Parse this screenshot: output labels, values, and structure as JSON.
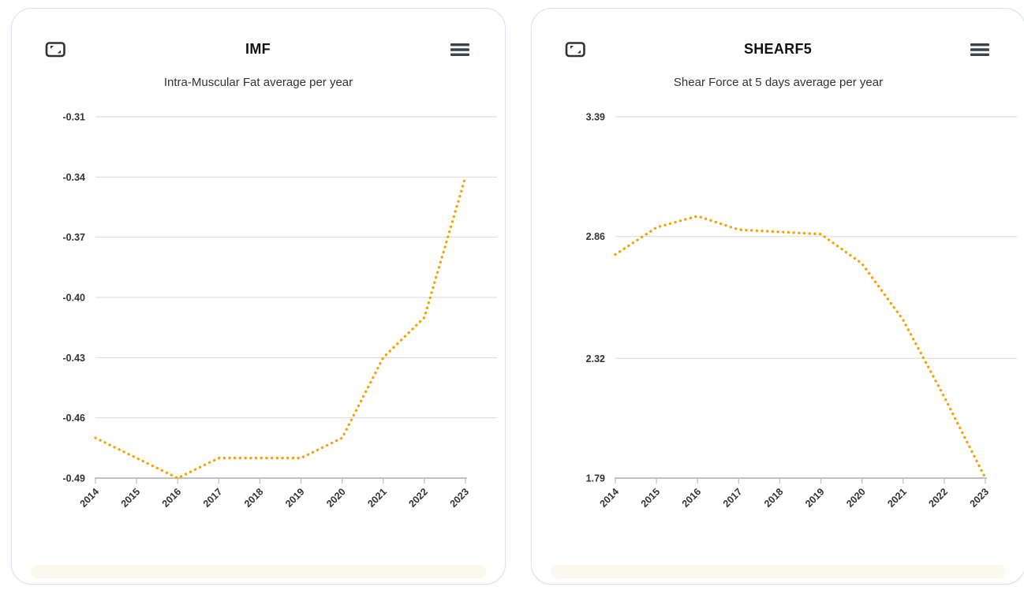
{
  "colors": {
    "accent": "#F0A30A",
    "grid": "#D9D9D9",
    "axis": "#BCC2C7",
    "label": "#333333",
    "title": "#111111",
    "card_border": "#DCE3EC"
  },
  "cards": [
    {
      "title": "IMF",
      "subtitle": "Intra-Muscular Fat average per year",
      "fullscreen_icon": "fullscreen-icon",
      "menu_icon": "hamburger-menu-icon"
    },
    {
      "title": "SHEARF5",
      "subtitle": "Shear Force at 5 days average per year",
      "fullscreen_icon": "fullscreen-icon",
      "menu_icon": "hamburger-menu-icon"
    }
  ],
  "chart_data": [
    {
      "type": "line",
      "title": "IMF",
      "subtitle": "Intra-Muscular Fat average per year",
      "line_style": "dotted",
      "line_color": "#F0A30A",
      "grid": true,
      "legend": false,
      "categories": [
        "2014",
        "2015",
        "2016",
        "2017",
        "2018",
        "2019",
        "2020",
        "2021",
        "2022",
        "2023"
      ],
      "series": [
        {
          "name": "IMF",
          "values": [
            -0.47,
            -0.48,
            -0.49,
            -0.48,
            -0.48,
            -0.48,
            -0.47,
            -0.43,
            -0.41,
            -0.34
          ]
        }
      ],
      "y_ticks": [
        -0.31,
        -0.34,
        -0.37,
        -0.4,
        -0.43,
        -0.46,
        -0.49
      ],
      "ylim": [
        -0.49,
        -0.31
      ],
      "xlabel": "",
      "ylabel": ""
    },
    {
      "type": "line",
      "title": "SHEARF5",
      "subtitle": "Shear Force at 5 days average per year",
      "line_style": "dotted",
      "line_color": "#F0A30A",
      "grid": true,
      "legend": false,
      "categories": [
        "2014",
        "2015",
        "2016",
        "2017",
        "2018",
        "2019",
        "2020",
        "2021",
        "2022",
        "2023"
      ],
      "series": [
        {
          "name": "SHEARF5",
          "values": [
            2.78,
            2.9,
            2.95,
            2.89,
            2.88,
            2.87,
            2.74,
            2.49,
            2.15,
            1.79
          ]
        }
      ],
      "y_ticks": [
        3.39,
        2.86,
        2.32,
        1.79
      ],
      "ylim": [
        1.79,
        3.39
      ],
      "xlabel": "",
      "ylabel": ""
    }
  ]
}
